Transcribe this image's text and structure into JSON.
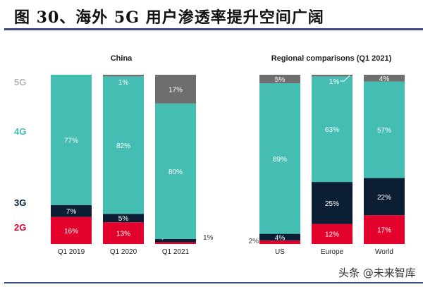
{
  "header": {
    "title": "图 30、海外 5G 用户渗透率提升空间广阔"
  },
  "watermark": "头条 @未来智库",
  "chart_data": [
    {
      "type": "bar",
      "stacked": true,
      "title": "China",
      "categories": [
        "Q1 2019",
        "Q1 2020",
        "Q1 2021"
      ],
      "series": [
        {
          "name": "2G",
          "color": "#e3022c",
          "values": [
            16,
            13,
            1
          ],
          "labels": [
            "16%",
            "13%",
            "1%"
          ]
        },
        {
          "name": "3G",
          "color": "#0b1e33",
          "values": [
            7,
            5,
            2
          ],
          "labels": [
            "7%",
            "5%",
            "2%"
          ]
        },
        {
          "name": "4G",
          "color": "#45bdb3",
          "values": [
            77,
            82,
            80
          ],
          "labels": [
            "77%",
            "82%",
            "80%"
          ]
        },
        {
          "name": "5G",
          "color": "#6e6e6e",
          "values": [
            0,
            1,
            17
          ],
          "labels": [
            "",
            "1%",
            "17%"
          ]
        }
      ],
      "ylim": [
        0,
        100
      ]
    },
    {
      "type": "bar",
      "stacked": true,
      "title": "Regional comparisons (Q1 2021)",
      "categories": [
        "US",
        "Europe",
        "World"
      ],
      "series": [
        {
          "name": "2G",
          "color": "#e3022c",
          "values": [
            2,
            12,
            17
          ],
          "labels": [
            "2%",
            "12%",
            "17%"
          ]
        },
        {
          "name": "3G",
          "color": "#0b1e33",
          "values": [
            4,
            25,
            22
          ],
          "labels": [
            "4%",
            "25%",
            "22%"
          ]
        },
        {
          "name": "4G",
          "color": "#45bdb3",
          "values": [
            89,
            63,
            57
          ],
          "labels": [
            "89%",
            "63%",
            "57%"
          ]
        },
        {
          "name": "5G",
          "color": "#6e6e6e",
          "values": [
            5,
            1,
            4
          ],
          "labels": [
            "5%",
            "1%",
            "4%"
          ]
        }
      ],
      "ylim": [
        0,
        100
      ]
    }
  ],
  "legend": [
    {
      "label": "5G",
      "color": "#b5b5b5"
    },
    {
      "label": "4G",
      "color": "#45bdb3"
    },
    {
      "label": "3G",
      "color": "#0b1e33"
    },
    {
      "label": "2G",
      "color": "#e3022c"
    }
  ]
}
